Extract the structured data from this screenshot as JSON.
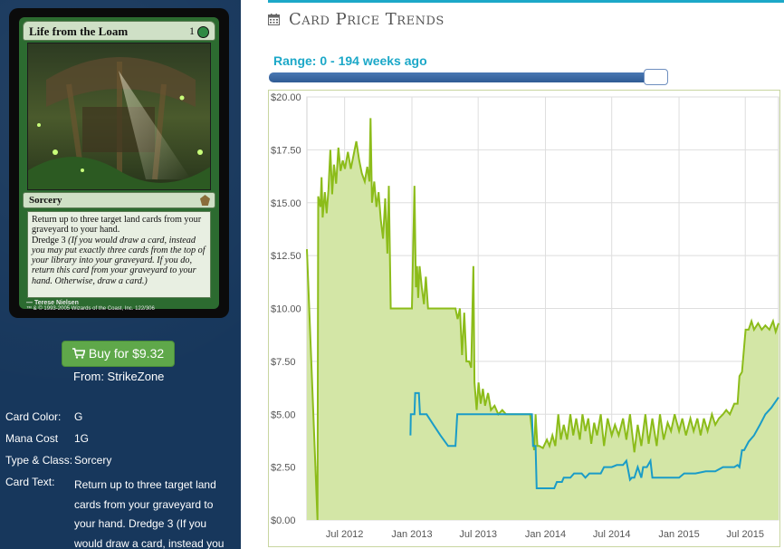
{
  "card": {
    "name": "Life from the Loam",
    "cost": "1",
    "type_line": "Sorcery",
    "rules_text": "Return up to three target land cards from your graveyard to your hand.",
    "dredge_label": "Dredge 3",
    "dredge_text": "(If you would draw a card, instead you may put exactly three cards from the top of your library into your graveyard. If you do, return this card from your graveyard to your hand. Otherwise, draw a card.)",
    "artist": "Terese Nielsen",
    "copyright": "™ & © 1993-2005 Wizards of the Coast, Inc. 122/306"
  },
  "buy": {
    "label": "Buy for $9.32",
    "from": "From: StrikeZone"
  },
  "attributes": [
    {
      "key": "Card Color:",
      "value": "G"
    },
    {
      "key": "Mana Cost",
      "value": "1G"
    },
    {
      "key": "Type & Class:",
      "value": "Sorcery"
    }
  ],
  "card_text": {
    "key": "Card Text:",
    "lines": [
      "Return up to three target land",
      "cards from your graveyard to",
      "your hand. Dredge 3 (If you",
      "would draw a card, instead you"
    ]
  },
  "section": {
    "title": "Card Price Trends"
  },
  "range": {
    "label": "Range: 0 - 194 weeks ago",
    "fraction": 0.99
  },
  "colors": {
    "series_primary": "#8cbc1a",
    "series_fill": "#d3e6a6",
    "series_secondary": "#1a9cc7"
  },
  "chart_data": {
    "type": "area",
    "ylim": [
      0,
      20
    ],
    "y_ticks": [
      "$0.00",
      "$2.50",
      "$5.00",
      "$7.50",
      "$10.00",
      "$12.50",
      "$15.00",
      "$17.50",
      "$20.00"
    ],
    "x_ticks": [
      "Jul 2012",
      "Jan 2013",
      "Jul 2013",
      "Jan 2014",
      "Jul 2014",
      "Jan 2015",
      "Jul 2015"
    ],
    "x_range": [
      "2012-03-20",
      "2015-09-30"
    ],
    "grid": true,
    "series": [
      {
        "points": [
          [
            "2012-03-20",
            12.8
          ],
          [
            "2012-04-18",
            0.0
          ],
          [
            "2012-04-20",
            15.3
          ],
          [
            "2012-04-26",
            14.8
          ],
          [
            "2012-04-29",
            16.2
          ],
          [
            "2012-05-02",
            14.3
          ],
          [
            "2012-05-08",
            15.5
          ],
          [
            "2012-05-13",
            14.5
          ],
          [
            "2012-05-18",
            15.6
          ],
          [
            "2012-05-23",
            17.5
          ],
          [
            "2012-05-28",
            15.4
          ],
          [
            "2012-06-02",
            16.8
          ],
          [
            "2012-06-08",
            15.9
          ],
          [
            "2012-06-14",
            17.6
          ],
          [
            "2012-06-20",
            16.5
          ],
          [
            "2012-06-26",
            17.0
          ],
          [
            "2012-07-02",
            16.6
          ],
          [
            "2012-07-10",
            17.4
          ],
          [
            "2012-07-18",
            16.6
          ],
          [
            "2012-07-25",
            17.2
          ],
          [
            "2012-08-02",
            17.9
          ],
          [
            "2012-08-10",
            17.0
          ],
          [
            "2012-08-17",
            16.4
          ],
          [
            "2012-08-25",
            16.0
          ],
          [
            "2012-09-01",
            16.7
          ],
          [
            "2012-09-07",
            16.0
          ],
          [
            "2012-09-10",
            19.0
          ],
          [
            "2012-09-14",
            15.0
          ],
          [
            "2012-09-20",
            16.0
          ],
          [
            "2012-09-26",
            14.8
          ],
          [
            "2012-10-02",
            15.5
          ],
          [
            "2012-10-08",
            14.2
          ],
          [
            "2012-10-14",
            13.3
          ],
          [
            "2012-10-20",
            15.2
          ],
          [
            "2012-10-26",
            12.6
          ],
          [
            "2012-10-30",
            15.8
          ],
          [
            "2012-11-04",
            10.0
          ],
          [
            "2012-11-15",
            10.0
          ],
          [
            "2012-11-25",
            10.0
          ],
          [
            "2012-12-05",
            10.0
          ],
          [
            "2012-12-15",
            10.0
          ],
          [
            "2012-12-25",
            10.0
          ],
          [
            "2013-01-01",
            10.0
          ],
          [
            "2013-01-08",
            15.8
          ],
          [
            "2013-01-12",
            11.0
          ],
          [
            "2013-01-15",
            12.0
          ],
          [
            "2013-01-18",
            10.5
          ],
          [
            "2013-01-22",
            12.0
          ],
          [
            "2013-01-28",
            11.0
          ],
          [
            "2013-02-03",
            10.2
          ],
          [
            "2013-02-08",
            11.5
          ],
          [
            "2013-02-14",
            10.0
          ],
          [
            "2013-03-01",
            10.0
          ],
          [
            "2013-03-20",
            10.0
          ],
          [
            "2013-04-10",
            10.0
          ],
          [
            "2013-04-30",
            10.0
          ],
          [
            "2013-05-06",
            9.5
          ],
          [
            "2013-05-12",
            10.0
          ],
          [
            "2013-05-18",
            7.8
          ],
          [
            "2013-05-24",
            9.8
          ],
          [
            "2013-05-30",
            7.5
          ],
          [
            "2013-06-06",
            7.5
          ],
          [
            "2013-06-12",
            7.2
          ],
          [
            "2013-06-18",
            12.0
          ],
          [
            "2013-06-21",
            6.5
          ],
          [
            "2013-06-27",
            5.2
          ],
          [
            "2013-07-02",
            6.5
          ],
          [
            "2013-07-08",
            5.5
          ],
          [
            "2013-07-14",
            6.2
          ],
          [
            "2013-07-20",
            5.4
          ],
          [
            "2013-07-28",
            6.0
          ],
          [
            "2013-08-05",
            5.2
          ],
          [
            "2013-08-15",
            5.4
          ],
          [
            "2013-08-25",
            5.0
          ],
          [
            "2013-09-05",
            5.2
          ],
          [
            "2013-09-15",
            5.0
          ],
          [
            "2013-10-01",
            5.0
          ],
          [
            "2013-10-20",
            5.0
          ],
          [
            "2013-11-05",
            5.0
          ],
          [
            "2013-11-20",
            5.0
          ],
          [
            "2013-12-01",
            3.3
          ],
          [
            "2013-12-05",
            5.0
          ],
          [
            "2013-12-10",
            3.5
          ],
          [
            "2013-12-15",
            3.5
          ],
          [
            "2013-12-25",
            3.4
          ],
          [
            "2014-01-05",
            3.8
          ],
          [
            "2014-01-12",
            3.5
          ],
          [
            "2014-01-20",
            4.0
          ],
          [
            "2014-01-28",
            3.5
          ],
          [
            "2014-02-05",
            5.0
          ],
          [
            "2014-02-12",
            3.8
          ],
          [
            "2014-02-20",
            4.5
          ],
          [
            "2014-03-01",
            3.8
          ],
          [
            "2014-03-10",
            5.0
          ],
          [
            "2014-03-18",
            4.0
          ],
          [
            "2014-03-26",
            4.8
          ],
          [
            "2014-04-05",
            3.8
          ],
          [
            "2014-04-12",
            5.0
          ],
          [
            "2014-04-20",
            4.2
          ],
          [
            "2014-04-28",
            4.8
          ],
          [
            "2014-05-06",
            3.6
          ],
          [
            "2014-05-14",
            4.6
          ],
          [
            "2014-05-22",
            4.0
          ],
          [
            "2014-06-01",
            5.0
          ],
          [
            "2014-06-10",
            3.5
          ],
          [
            "2014-06-20",
            4.8
          ],
          [
            "2014-07-01",
            4.0
          ],
          [
            "2014-07-10",
            4.5
          ],
          [
            "2014-07-20",
            4.0
          ],
          [
            "2014-08-01",
            4.8
          ],
          [
            "2014-08-10",
            3.8
          ],
          [
            "2014-08-20",
            5.0
          ],
          [
            "2014-09-01",
            3.2
          ],
          [
            "2014-09-10",
            4.5
          ],
          [
            "2014-09-20",
            3.5
          ],
          [
            "2014-10-01",
            5.0
          ],
          [
            "2014-10-10",
            3.6
          ],
          [
            "2014-10-20",
            4.8
          ],
          [
            "2014-11-01",
            3.5
          ],
          [
            "2014-11-10",
            5.0
          ],
          [
            "2014-11-20",
            3.8
          ],
          [
            "2014-12-01",
            4.6
          ],
          [
            "2014-12-10",
            4.2
          ],
          [
            "2014-12-20",
            5.0
          ],
          [
            "2015-01-01",
            4.2
          ],
          [
            "2015-01-10",
            4.8
          ],
          [
            "2015-01-20",
            4.0
          ],
          [
            "2015-02-01",
            4.8
          ],
          [
            "2015-02-10",
            4.2
          ],
          [
            "2015-02-20",
            4.8
          ],
          [
            "2015-03-01",
            4.0
          ],
          [
            "2015-03-10",
            4.8
          ],
          [
            "2015-03-20",
            4.2
          ],
          [
            "2015-04-01",
            5.0
          ],
          [
            "2015-04-10",
            4.5
          ],
          [
            "2015-04-20",
            4.8
          ],
          [
            "2015-05-01",
            5.0
          ],
          [
            "2015-05-10",
            5.2
          ],
          [
            "2015-05-20",
            5.0
          ],
          [
            "2015-06-01",
            5.5
          ],
          [
            "2015-06-10",
            5.5
          ],
          [
            "2015-06-15",
            6.8
          ],
          [
            "2015-06-22",
            7.0
          ],
          [
            "2015-06-28",
            8.2
          ],
          [
            "2015-07-02",
            9.0
          ],
          [
            "2015-07-10",
            9.0
          ],
          [
            "2015-07-18",
            9.4
          ],
          [
            "2015-07-25",
            9.0
          ],
          [
            "2015-08-05",
            9.3
          ],
          [
            "2015-08-15",
            9.0
          ],
          [
            "2015-08-25",
            9.2
          ],
          [
            "2015-09-05",
            9.0
          ],
          [
            "2015-09-15",
            9.4
          ],
          [
            "2015-09-22",
            8.9
          ],
          [
            "2015-09-30",
            9.3
          ]
        ]
      },
      {
        "points": [
          [
            "2012-12-28",
            4.0
          ],
          [
            "2012-12-29",
            5.0
          ],
          [
            "2013-01-08",
            5.0
          ],
          [
            "2013-01-10",
            6.0
          ],
          [
            "2013-01-20",
            6.0
          ],
          [
            "2013-01-23",
            5.0
          ],
          [
            "2013-02-10",
            5.0
          ],
          [
            "2013-03-01",
            4.5
          ],
          [
            "2013-03-20",
            4.0
          ],
          [
            "2013-04-10",
            3.5
          ],
          [
            "2013-04-30",
            3.5
          ],
          [
            "2013-05-05",
            5.0
          ],
          [
            "2013-06-01",
            5.0
          ],
          [
            "2013-07-01",
            5.0
          ],
          [
            "2013-08-01",
            5.0
          ],
          [
            "2013-09-01",
            5.0
          ],
          [
            "2013-10-01",
            5.0
          ],
          [
            "2013-11-01",
            5.0
          ],
          [
            "2013-11-25",
            5.0
          ],
          [
            "2013-11-28",
            3.5
          ],
          [
            "2013-12-05",
            3.5
          ],
          [
            "2013-12-08",
            1.5
          ],
          [
            "2013-12-25",
            1.5
          ],
          [
            "2014-01-10",
            1.5
          ],
          [
            "2014-01-25",
            1.5
          ],
          [
            "2014-02-01",
            1.8
          ],
          [
            "2014-02-15",
            1.8
          ],
          [
            "2014-02-20",
            2.0
          ],
          [
            "2014-03-10",
            2.0
          ],
          [
            "2014-03-20",
            2.2
          ],
          [
            "2014-04-10",
            2.2
          ],
          [
            "2014-04-20",
            2.0
          ],
          [
            "2014-05-01",
            2.2
          ],
          [
            "2014-06-01",
            2.2
          ],
          [
            "2014-06-10",
            2.5
          ],
          [
            "2014-07-01",
            2.5
          ],
          [
            "2014-07-15",
            2.6
          ],
          [
            "2014-08-01",
            2.6
          ],
          [
            "2014-08-10",
            2.8
          ],
          [
            "2014-08-20",
            1.9
          ],
          [
            "2014-08-25",
            2.0
          ],
          [
            "2014-09-01",
            2.0
          ],
          [
            "2014-09-10",
            2.5
          ],
          [
            "2014-09-20",
            2.0
          ],
          [
            "2014-09-25",
            2.5
          ],
          [
            "2014-10-05",
            2.5
          ],
          [
            "2014-10-15",
            2.8
          ],
          [
            "2014-10-20",
            2.0
          ],
          [
            "2014-11-10",
            2.0
          ],
          [
            "2014-12-01",
            2.0
          ],
          [
            "2015-01-01",
            2.0
          ],
          [
            "2015-01-15",
            2.2
          ],
          [
            "2015-02-15",
            2.2
          ],
          [
            "2015-03-15",
            2.3
          ],
          [
            "2015-04-10",
            2.3
          ],
          [
            "2015-05-01",
            2.5
          ],
          [
            "2015-05-20",
            2.5
          ],
          [
            "2015-06-01",
            2.5
          ],
          [
            "2015-06-10",
            2.6
          ],
          [
            "2015-06-15",
            2.5
          ],
          [
            "2015-06-22",
            3.3
          ],
          [
            "2015-06-28",
            3.3
          ],
          [
            "2015-07-10",
            3.7
          ],
          [
            "2015-07-25",
            4.0
          ],
          [
            "2015-08-10",
            4.5
          ],
          [
            "2015-08-25",
            5.0
          ],
          [
            "2015-09-10",
            5.3
          ],
          [
            "2015-09-30",
            5.8
          ]
        ]
      }
    ]
  }
}
